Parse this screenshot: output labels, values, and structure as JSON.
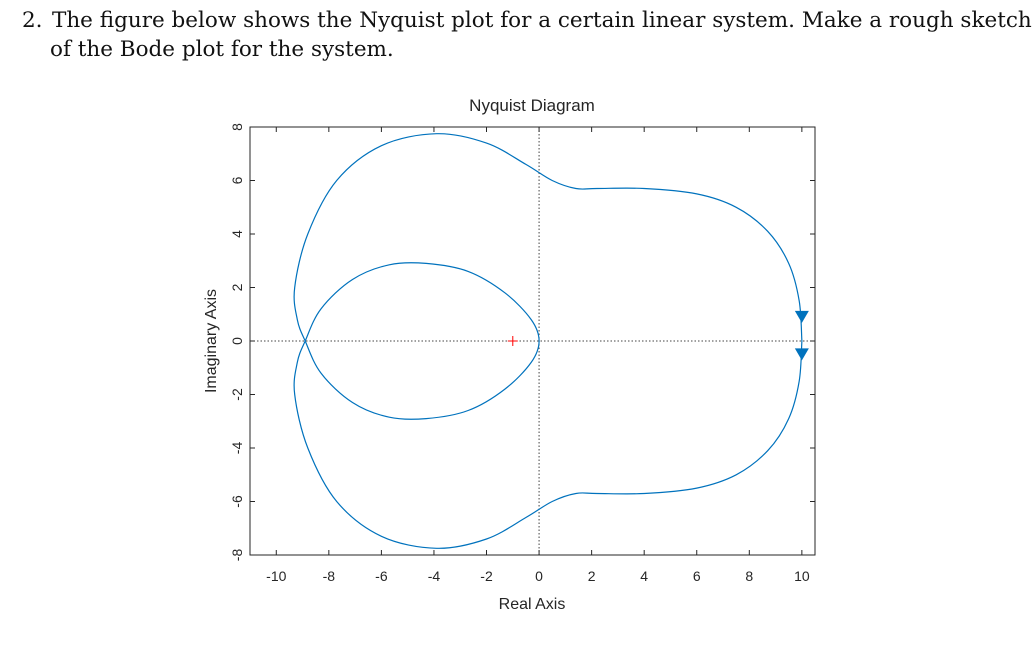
{
  "problem": {
    "number": "2.",
    "line1": "The figure below shows the Nyquist plot for a certain linear system. Make a rough sketch",
    "line2": "of the Bode plot for the system."
  },
  "chart_data": {
    "type": "line",
    "title": "Nyquist Diagram",
    "xlabel": "Real Axis",
    "ylabel": "Imaginary Axis",
    "xlim": [
      -11,
      10.5
    ],
    "ylim": [
      -8,
      8
    ],
    "xticks": [
      -10,
      -8,
      -6,
      -4,
      -2,
      0,
      2,
      4,
      6,
      8,
      10
    ],
    "yticks": [
      -8,
      -6,
      -4,
      -2,
      0,
      2,
      4,
      6,
      8
    ],
    "grid": false,
    "critical_point": {
      "x": -1,
      "y": 0,
      "marker": "+",
      "color": "#ff0000"
    },
    "line_color": "#0072bd",
    "series": [
      {
        "points": [
          [
            10,
            0
          ],
          [
            9.9,
            1.5
          ],
          [
            9.5,
            2.9
          ],
          [
            8.7,
            4.1
          ],
          [
            7.5,
            5.0
          ],
          [
            6,
            5.5
          ],
          [
            4,
            5.7
          ],
          [
            2.2,
            5.7
          ],
          [
            1.4,
            5.7
          ],
          [
            0.5,
            6.0
          ],
          [
            -0.5,
            6.6
          ],
          [
            -2,
            7.4
          ],
          [
            -3.9,
            7.75
          ],
          [
            -6,
            7.3
          ],
          [
            -7.7,
            6.0
          ],
          [
            -8.8,
            4.0
          ],
          [
            -9.3,
            2.0
          ],
          [
            -9.2,
            0.8
          ],
          [
            -8.9,
            0
          ],
          [
            -8.3,
            -1.2
          ],
          [
            -7.1,
            -2.3
          ],
          [
            -5.7,
            -2.85
          ],
          [
            -4.3,
            -2.9
          ],
          [
            -2.7,
            -2.6
          ],
          [
            -1.3,
            -1.8
          ],
          [
            -0.3,
            -0.8
          ],
          [
            0,
            0
          ],
          [
            -0.3,
            0.8
          ],
          [
            -1.3,
            1.8
          ],
          [
            -2.7,
            2.6
          ],
          [
            -4.3,
            2.9
          ],
          [
            -5.7,
            2.85
          ],
          [
            -7.1,
            2.3
          ],
          [
            -8.3,
            1.2
          ],
          [
            -8.9,
            0
          ],
          [
            -9.2,
            -0.8
          ],
          [
            -9.3,
            -2.0
          ],
          [
            -8.8,
            -4.0
          ],
          [
            -7.7,
            -6.0
          ],
          [
            -6,
            -7.3
          ],
          [
            -3.9,
            -7.75
          ],
          [
            -2,
            -7.4
          ],
          [
            -0.5,
            -6.6
          ],
          [
            0.5,
            -6.0
          ],
          [
            1.4,
            -5.7
          ],
          [
            2.2,
            -5.7
          ],
          [
            4,
            -5.7
          ],
          [
            6,
            -5.5
          ],
          [
            7.5,
            -5.0
          ],
          [
            8.7,
            -4.1
          ],
          [
            9.5,
            -2.9
          ],
          [
            9.9,
            -1.5
          ],
          [
            10,
            0
          ]
        ]
      }
    ],
    "arrows": [
      {
        "x": 10,
        "y": 0.9,
        "direction": "down"
      },
      {
        "x": 10,
        "y": -0.5,
        "direction": "down"
      }
    ]
  }
}
